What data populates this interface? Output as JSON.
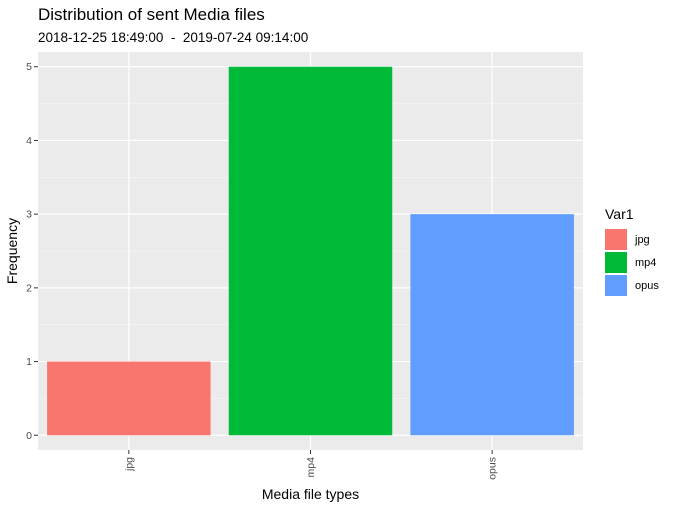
{
  "chart_data": {
    "type": "bar",
    "title": "Distribution of sent Media files",
    "subtitle": "2018-12-25 18:49:00  -  2019-07-24 09:14:00",
    "xlabel": "Media file types",
    "ylabel": "Frequency",
    "categories": [
      "jpg",
      "mp4",
      "opus"
    ],
    "values": [
      1,
      5,
      3
    ],
    "colors": [
      "#F8766D",
      "#00BA38",
      "#619CFF"
    ],
    "ylim": [
      -0.2,
      5.2
    ],
    "yticks": [
      "0",
      "1",
      "2",
      "3",
      "4",
      "5"
    ],
    "grid": true,
    "legend": {
      "title": "Var1",
      "position": "right",
      "entries": [
        "jpg",
        "mp4",
        "opus"
      ]
    },
    "panel_background": "#EBEBEB"
  }
}
